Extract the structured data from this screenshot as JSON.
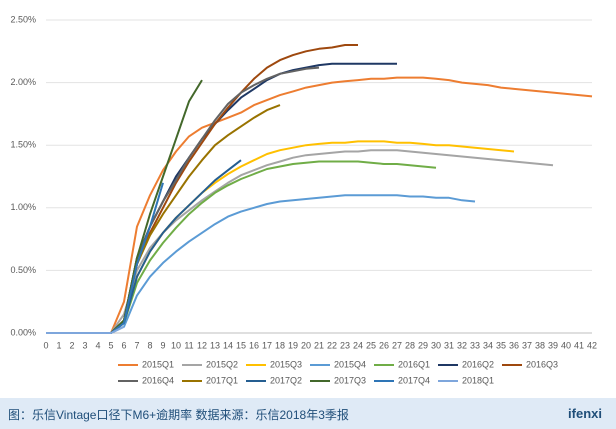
{
  "chart_data": {
    "type": "line",
    "x": [
      0,
      1,
      2,
      3,
      4,
      5,
      6,
      7,
      8,
      9,
      10,
      11,
      12,
      13,
      14,
      15,
      16,
      17,
      18,
      19,
      20,
      21,
      22,
      23,
      24,
      25,
      26,
      27,
      28,
      29,
      30,
      31,
      32,
      33,
      34,
      35,
      36,
      37,
      38,
      39,
      40,
      41,
      42
    ],
    "xlim": [
      0,
      42
    ],
    "ylim": [
      0,
      2.5
    ],
    "yticks": [
      {
        "value": 0,
        "label": "0.00%"
      },
      {
        "value": 0.5,
        "label": "0.50%"
      },
      {
        "value": 1,
        "label": "1.00%"
      },
      {
        "value": 1.5,
        "label": "1.50%"
      },
      {
        "value": 2,
        "label": "2.00%"
      },
      {
        "value": 2.5,
        "label": "2.50%"
      }
    ],
    "grid": true,
    "legend": "bottom",
    "series": [
      {
        "name": "2015Q1",
        "color": "#ed7d31",
        "values": [
          0,
          0,
          0,
          0,
          0,
          0,
          0.25,
          0.85,
          1.1,
          1.3,
          1.45,
          1.57,
          1.64,
          1.68,
          1.72,
          1.76,
          1.82,
          1.86,
          1.9,
          1.93,
          1.96,
          1.98,
          2.0,
          2.01,
          2.02,
          2.03,
          2.03,
          2.04,
          2.04,
          2.04,
          2.03,
          2.02,
          2.0,
          1.99,
          1.98,
          1.96,
          1.95,
          1.94,
          1.93,
          1.92,
          1.91,
          1.9,
          1.89
        ]
      },
      {
        "name": "2015Q2",
        "color": "#a5a5a5",
        "values": [
          0,
          0,
          0,
          0,
          0,
          0,
          0.15,
          0.5,
          0.68,
          0.8,
          0.9,
          0.98,
          1.06,
          1.13,
          1.2,
          1.26,
          1.3,
          1.34,
          1.37,
          1.4,
          1.42,
          1.43,
          1.44,
          1.45,
          1.45,
          1.46,
          1.46,
          1.46,
          1.45,
          1.44,
          1.43,
          1.42,
          1.41,
          1.4,
          1.39,
          1.38,
          1.37,
          1.36,
          1.35,
          1.34,
          null,
          null,
          null
        ]
      },
      {
        "name": "2015Q3",
        "color": "#ffc000",
        "values": [
          0,
          0,
          0,
          0,
          0,
          0,
          0.1,
          0.45,
          0.65,
          0.8,
          0.92,
          1.02,
          1.12,
          1.2,
          1.27,
          1.33,
          1.38,
          1.43,
          1.46,
          1.48,
          1.5,
          1.51,
          1.52,
          1.52,
          1.53,
          1.53,
          1.53,
          1.52,
          1.52,
          1.51,
          1.5,
          1.5,
          1.49,
          1.48,
          1.47,
          1.46,
          1.45,
          null,
          null,
          null,
          null,
          null,
          null
        ]
      },
      {
        "name": "2015Q4",
        "color": "#5b9bd5",
        "values": [
          0,
          0,
          0,
          0,
          0,
          0,
          0.05,
          0.3,
          0.45,
          0.56,
          0.65,
          0.73,
          0.8,
          0.87,
          0.93,
          0.97,
          1.0,
          1.03,
          1.05,
          1.06,
          1.07,
          1.08,
          1.09,
          1.1,
          1.1,
          1.1,
          1.1,
          1.1,
          1.09,
          1.09,
          1.08,
          1.08,
          1.06,
          1.05,
          null,
          null,
          null,
          null,
          null,
          null,
          null,
          null,
          null
        ]
      },
      {
        "name": "2016Q1",
        "color": "#70ad47",
        "values": [
          0,
          0,
          0,
          0,
          0,
          0,
          0.08,
          0.4,
          0.58,
          0.72,
          0.84,
          0.95,
          1.04,
          1.12,
          1.18,
          1.23,
          1.27,
          1.31,
          1.33,
          1.35,
          1.36,
          1.37,
          1.37,
          1.37,
          1.37,
          1.36,
          1.35,
          1.35,
          1.34,
          1.33,
          1.32,
          null,
          null,
          null,
          null,
          null,
          null,
          null,
          null,
          null,
          null,
          null,
          null
        ]
      },
      {
        "name": "2016Q2",
        "color": "#1f3864",
        "values": [
          0,
          0,
          0,
          0,
          0,
          0,
          0.1,
          0.6,
          0.85,
          1.05,
          1.25,
          1.4,
          1.55,
          1.67,
          1.78,
          1.88,
          1.95,
          2.02,
          2.07,
          2.1,
          2.12,
          2.14,
          2.15,
          2.15,
          2.15,
          2.15,
          2.15,
          2.15,
          null,
          null,
          null,
          null,
          null,
          null,
          null,
          null,
          null,
          null,
          null,
          null,
          null,
          null,
          null
        ]
      },
      {
        "name": "2016Q3",
        "color": "#9e480e",
        "values": [
          0,
          0,
          0,
          0,
          0,
          0,
          0.1,
          0.55,
          0.8,
          1.0,
          1.2,
          1.37,
          1.52,
          1.67,
          1.8,
          1.92,
          2.03,
          2.12,
          2.18,
          2.22,
          2.25,
          2.27,
          2.28,
          2.3,
          2.3,
          null,
          null,
          null,
          null,
          null,
          null,
          null,
          null,
          null,
          null,
          null,
          null,
          null,
          null,
          null,
          null,
          null,
          null
        ]
      },
      {
        "name": "2016Q4",
        "color": "#636363",
        "values": [
          0,
          0,
          0,
          0,
          0,
          0,
          0.1,
          0.6,
          0.85,
          1.05,
          1.22,
          1.4,
          1.55,
          1.7,
          1.83,
          1.92,
          1.98,
          2.03,
          2.07,
          2.09,
          2.11,
          2.12,
          null,
          null,
          null,
          null,
          null,
          null,
          null,
          null,
          null,
          null,
          null,
          null,
          null,
          null,
          null,
          null,
          null,
          null,
          null,
          null,
          null
        ]
      },
      {
        "name": "2017Q1",
        "color": "#997300",
        "values": [
          0,
          0,
          0,
          0,
          0,
          0,
          0.1,
          0.55,
          0.78,
          0.95,
          1.1,
          1.25,
          1.38,
          1.5,
          1.58,
          1.65,
          1.72,
          1.78,
          1.82,
          null,
          null,
          null,
          null,
          null,
          null,
          null,
          null,
          null,
          null,
          null,
          null,
          null,
          null,
          null,
          null,
          null,
          null,
          null,
          null,
          null,
          null,
          null,
          null
        ]
      },
      {
        "name": "2017Q2",
        "color": "#255e91",
        "values": [
          0,
          0,
          0,
          0,
          0,
          0,
          0.08,
          0.45,
          0.65,
          0.8,
          0.92,
          1.02,
          1.12,
          1.22,
          1.3,
          1.38,
          null,
          null,
          null,
          null,
          null,
          null,
          null,
          null,
          null,
          null,
          null,
          null,
          null,
          null,
          null,
          null,
          null,
          null,
          null,
          null,
          null,
          null,
          null,
          null,
          null,
          null,
          null
        ]
      },
      {
        "name": "2017Q3",
        "color": "#43682b",
        "values": [
          0,
          0,
          0,
          0,
          0,
          0,
          0.1,
          0.6,
          0.95,
          1.25,
          1.55,
          1.85,
          2.02,
          null,
          null,
          null,
          null,
          null,
          null,
          null,
          null,
          null,
          null,
          null,
          null,
          null,
          null,
          null,
          null,
          null,
          null,
          null,
          null,
          null,
          null,
          null,
          null,
          null,
          null,
          null,
          null,
          null,
          null
        ]
      },
      {
        "name": "2017Q4",
        "color": "#2e75b6",
        "values": [
          0,
          0,
          0,
          0,
          0,
          0,
          0.08,
          0.55,
          0.85,
          1.2,
          null,
          null,
          null,
          null,
          null,
          null,
          null,
          null,
          null,
          null,
          null,
          null,
          null,
          null,
          null,
          null,
          null,
          null,
          null,
          null,
          null,
          null,
          null,
          null,
          null,
          null,
          null,
          null,
          null,
          null,
          null,
          null,
          null
        ]
      },
      {
        "name": "2018Q1",
        "color": "#7ea6dc",
        "values": [
          0,
          0,
          0,
          0,
          0,
          0,
          0.05,
          null,
          null,
          null,
          null,
          null,
          null,
          null,
          null,
          null,
          null,
          null,
          null,
          null,
          null,
          null,
          null,
          null,
          null,
          null,
          null,
          null,
          null,
          null,
          null,
          null,
          null,
          null,
          null,
          null,
          null,
          null,
          null,
          null,
          null,
          null,
          null
        ]
      }
    ]
  },
  "caption": {
    "text": "图：乐信Vintage口径下M6+逾期率   数据来源：乐信2018年3季报",
    "logo": "ifenxi"
  }
}
